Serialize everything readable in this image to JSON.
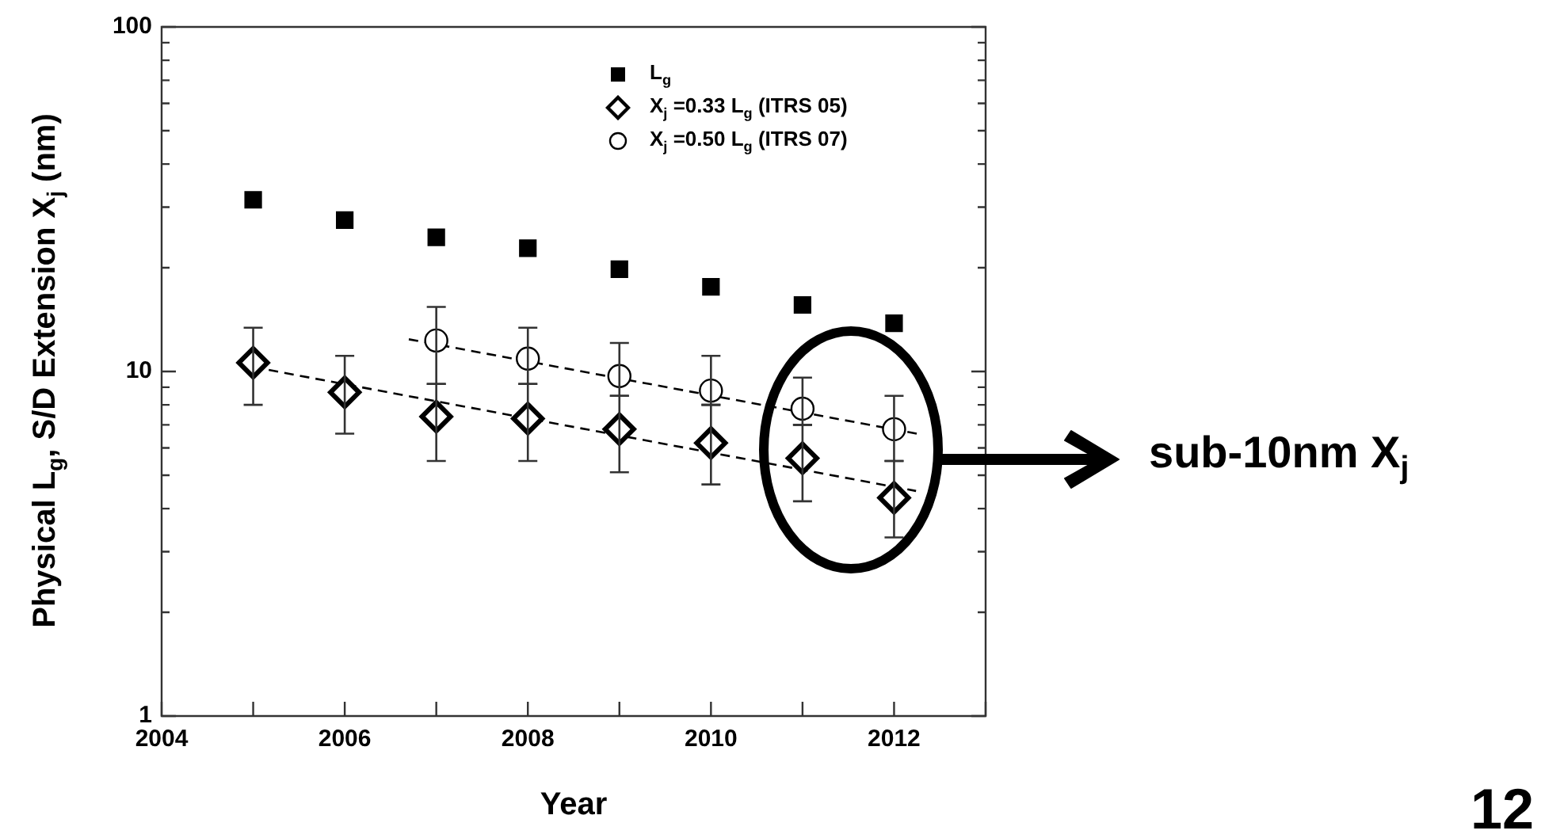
{
  "chart_data": {
    "type": "scatter",
    "xlabel": "Year",
    "ylabel": "Physical L$_{g}$, S/D Extension X$_{j}$ (nm)",
    "xlim": [
      2004,
      2013
    ],
    "xticks": [
      2004,
      {
        "value": 2005,
        "label": null
      },
      2006,
      {
        "value": 2007,
        "label": null
      },
      2008,
      {
        "value": 2009,
        "label": null
      },
      2010,
      {
        "value": 2011,
        "label": null
      },
      2012,
      {
        "value": 2013,
        "label": null
      }
    ],
    "ylim": [
      1,
      100
    ],
    "log": "y",
    "yticks": [
      1,
      {
        "value": 2,
        "label": null
      },
      {
        "value": 3,
        "label": null
      },
      {
        "value": 4,
        "label": null
      },
      {
        "value": 5,
        "label": null
      },
      {
        "value": 6,
        "label": null
      },
      {
        "value": 7,
        "label": null
      },
      {
        "value": 8,
        "label": null
      },
      {
        "value": 9,
        "label": null
      },
      10,
      {
        "value": 20,
        "label": null
      },
      {
        "value": 30,
        "label": null
      },
      {
        "value": 40,
        "label": null
      },
      {
        "value": 50,
        "label": null
      },
      {
        "value": 60,
        "label": null
      },
      {
        "value": 70,
        "label": null
      },
      {
        "value": 80,
        "label": null
      },
      {
        "value": 90,
        "label": null
      },
      100
    ],
    "grid": false,
    "legend": "top right",
    "series": [
      {
        "name": "L$_{g}$",
        "marker": "square",
        "color": "#000000",
        "x": [
          2005,
          2006,
          2007,
          2008,
          2009,
          2010,
          2011,
          2012
        ],
        "values": [
          31.5,
          27.5,
          24.5,
          22.8,
          19.8,
          17.6,
          15.6,
          13.8
        ]
      },
      {
        "name": "X$_{j}$ =0.33 L$_{g}$ (ITRS 05)",
        "marker": "diamond",
        "color": "#000000",
        "x": [
          2005,
          2006,
          2007,
          2008,
          2009,
          2010,
          2011,
          2012
        ],
        "values": [
          10.6,
          8.7,
          7.4,
          7.3,
          6.8,
          6.2,
          5.6,
          4.3
        ],
        "errors": [
          [
            8.0,
            13.4
          ],
          [
            6.6,
            11.1
          ],
          [
            5.5,
            9.2
          ],
          [
            5.5,
            9.2
          ],
          [
            5.1,
            8.5
          ],
          [
            4.7,
            8.0
          ],
          [
            4.2,
            7.0
          ],
          [
            3.3,
            5.5
          ]
        ]
      },
      {
        "name": "X$_{j}$ =0.50 L$_{g}$ (ITRS 07)",
        "marker": "circle",
        "color": "#000000",
        "x": [
          2007,
          2008,
          2009,
          2010,
          2011,
          2012
        ],
        "values": [
          12.3,
          10.9,
          9.7,
          8.8,
          7.8,
          6.8
        ],
        "errors": [
          [
            9.2,
            15.4
          ],
          [
            9.2,
            13.4
          ],
          [
            8.5,
            12.1
          ],
          [
            8.0,
            11.1
          ],
          [
            7.0,
            9.6
          ],
          [
            5.5,
            8.5
          ]
        ]
      },
      {
        "type": "line",
        "marker": "none",
        "line_style": "dashed",
        "color": "#000000",
        "x": [
          2005,
          2012.24
        ],
        "values": [
          10.3,
          4.5
        ]
      },
      {
        "type": "line",
        "marker": "none",
        "line_style": "dashed",
        "color": "#000000",
        "x": [
          2006.7,
          2012.25
        ],
        "values": [
          12.4,
          6.6
        ]
      }
    ],
    "annotations": [
      "sub-10nm X$_{j}$",
      "12"
    ]
  }
}
